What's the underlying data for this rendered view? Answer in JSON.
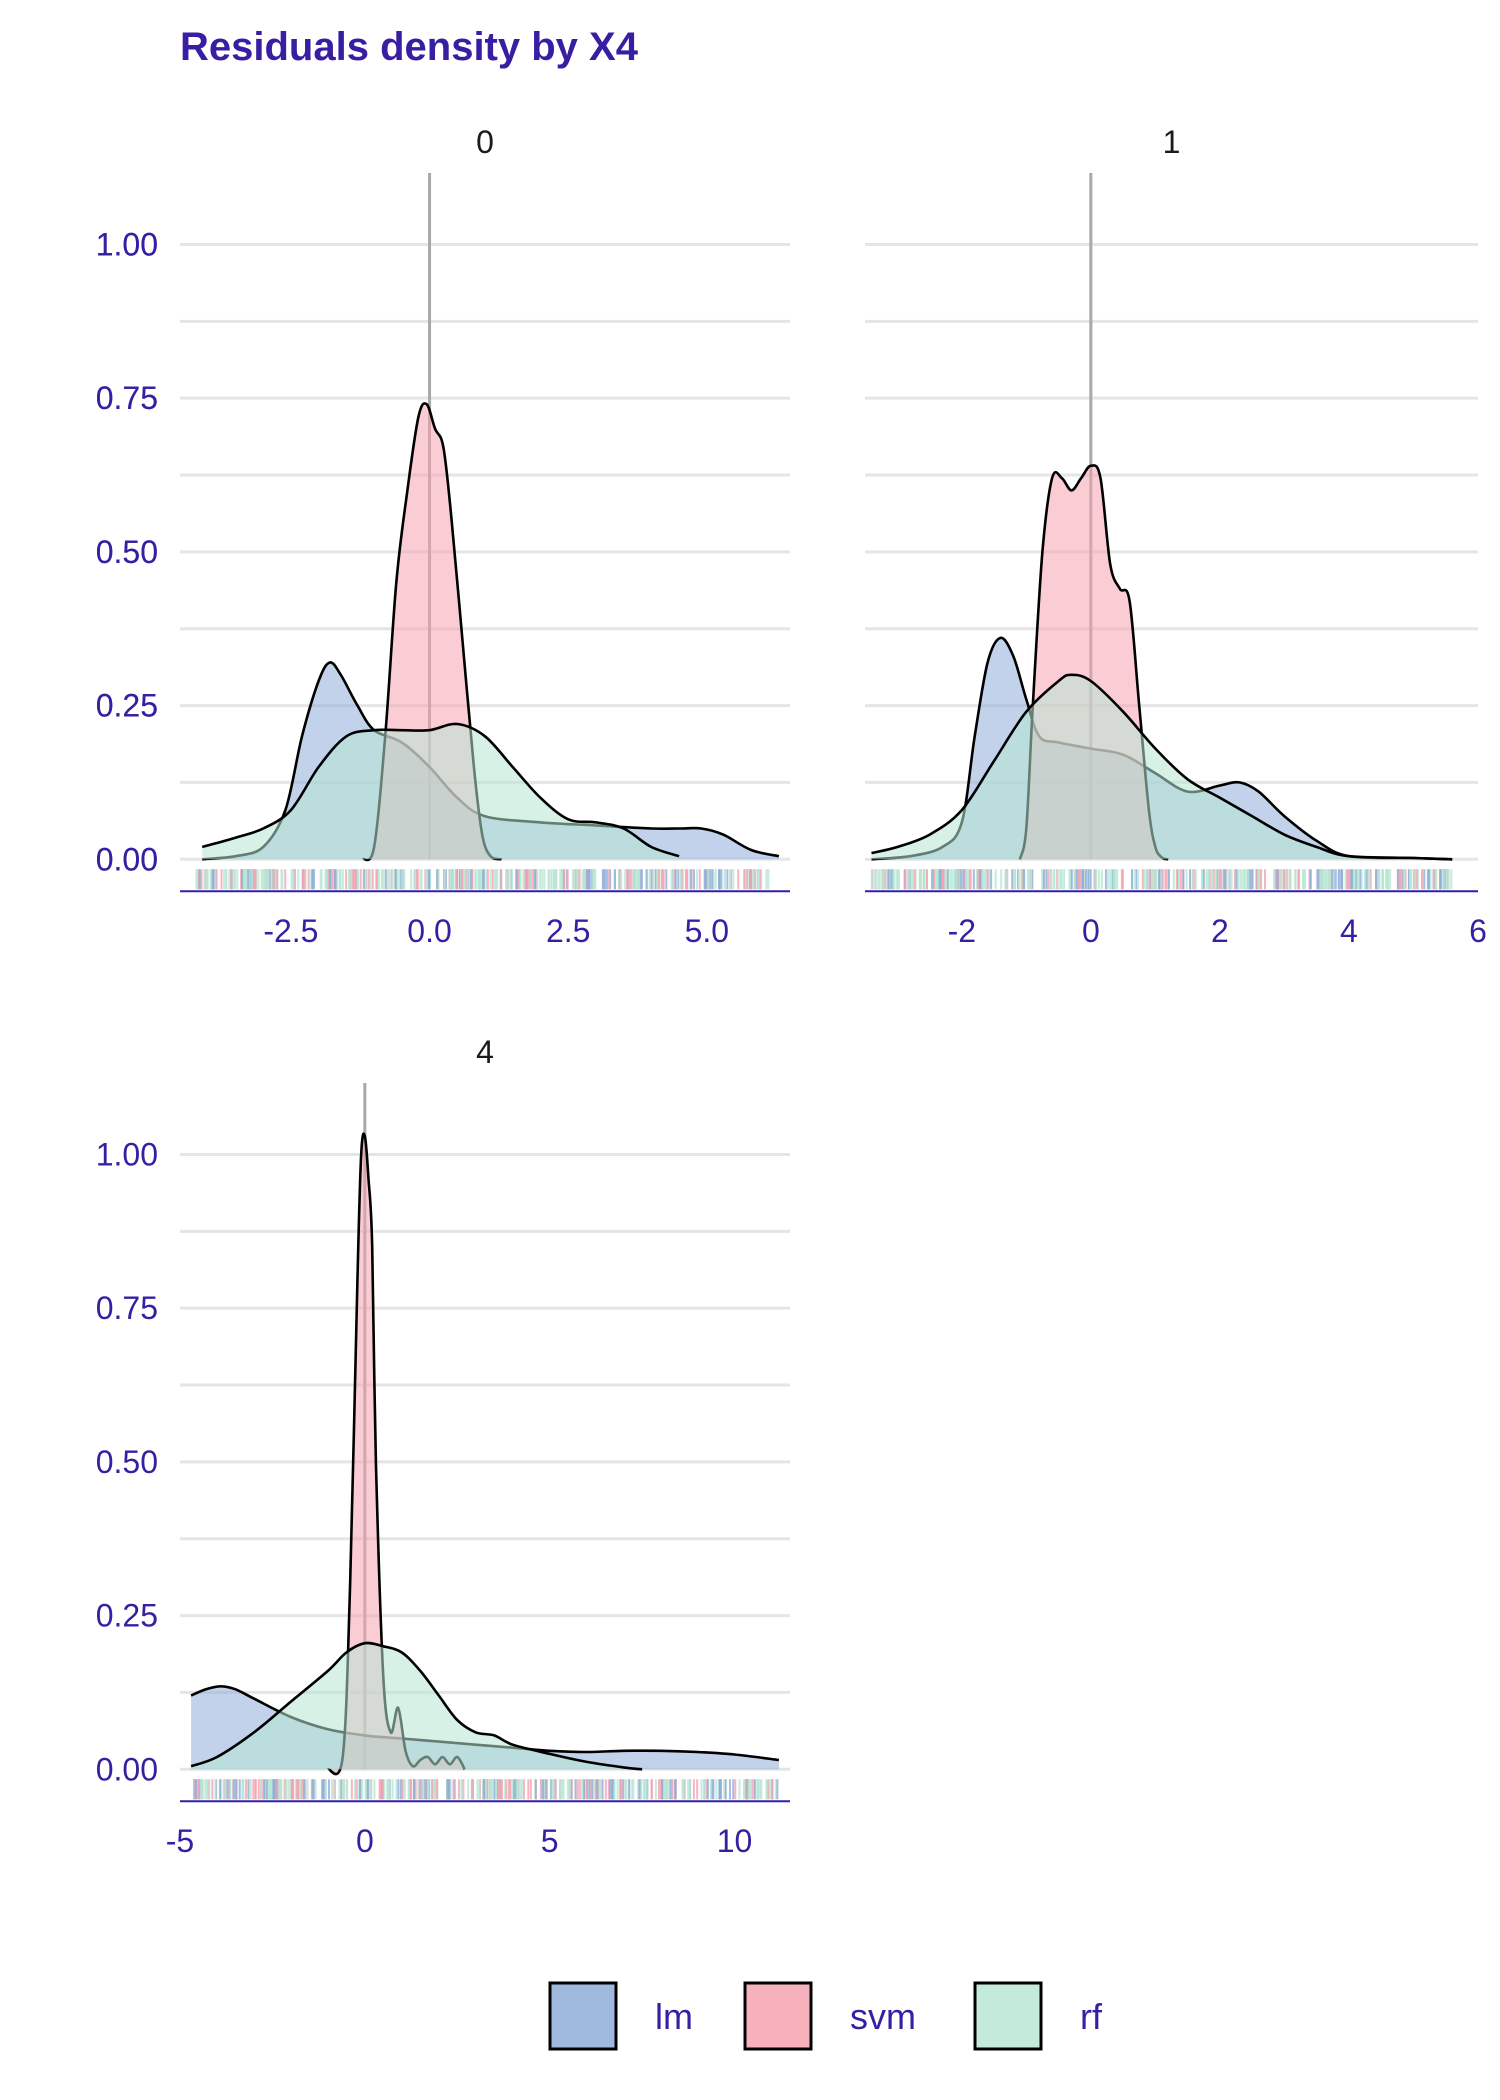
{
  "chart_data": {
    "type": "area",
    "title": "Residuals density by X4",
    "xlabel": "",
    "ylabel": "",
    "legend": {
      "position": "bottom",
      "entries": [
        {
          "key": "lm",
          "label": "lm"
        },
        {
          "key": "svm",
          "label": "svm"
        },
        {
          "key": "rf",
          "label": "rf"
        }
      ]
    },
    "colors": {
      "lm": "#8fadd8",
      "svm": "#f5a3b0",
      "rf": "#b8e6d3",
      "outline": "#000000",
      "grid": "#e5e5e5",
      "vline": "#a8a8a8",
      "axis": "#371ea3"
    },
    "fill_opacity": 0.55,
    "grid": true,
    "y_ticks": [
      0,
      0.25,
      0.5,
      0.75,
      1.0
    ],
    "y_tick_labels": [
      "0.00",
      "0.25",
      "0.50",
      "0.75",
      "1.00"
    ],
    "ylim": [
      -0.05,
      1.1
    ],
    "panels": [
      {
        "strip": "0",
        "xlim": [
          -4.5,
          6.5
        ],
        "x_ticks": [
          -2.5,
          0,
          2.5,
          5
        ],
        "x_tick_labels": [
          "-2.5",
          "0.0",
          "2.5",
          "5.0"
        ],
        "series": [
          {
            "key": "lm",
            "x": [
              -4.1,
              -3.5,
              -3.0,
              -2.6,
              -2.3,
              -2.0,
              -1.8,
              -1.6,
              -1.3,
              -1.0,
              -0.5,
              0.0,
              0.5,
              1.0,
              2.0,
              3.0,
              4.0,
              4.5,
              4.9,
              5.3,
              5.8,
              6.3
            ],
            "y": [
              0.0,
              0.005,
              0.02,
              0.08,
              0.2,
              0.29,
              0.32,
              0.3,
              0.25,
              0.21,
              0.19,
              0.15,
              0.1,
              0.07,
              0.06,
              0.055,
              0.05,
              0.05,
              0.05,
              0.04,
              0.015,
              0.005
            ]
          },
          {
            "key": "svm",
            "x": [
              -1.2,
              -1.0,
              -0.8,
              -0.6,
              -0.4,
              -0.2,
              -0.05,
              0.1,
              0.25,
              0.4,
              0.6,
              0.8,
              0.95,
              1.1,
              1.3
            ],
            "y": [
              0.0,
              0.02,
              0.2,
              0.45,
              0.6,
              0.72,
              0.74,
              0.7,
              0.67,
              0.55,
              0.35,
              0.15,
              0.04,
              0.005,
              0.0
            ]
          },
          {
            "key": "rf",
            "x": [
              -4.1,
              -3.5,
              -3.0,
              -2.5,
              -2.0,
              -1.5,
              -1.0,
              -0.5,
              0.0,
              0.5,
              1.0,
              1.5,
              2.0,
              2.5,
              3.0,
              3.5,
              4.0,
              4.5
            ],
            "y": [
              0.02,
              0.035,
              0.05,
              0.08,
              0.15,
              0.2,
              0.21,
              0.21,
              0.21,
              0.22,
              0.2,
              0.15,
              0.1,
              0.065,
              0.06,
              0.05,
              0.02,
              0.005
            ]
          }
        ],
        "rug": {
          "range": [
            -4.2,
            6.2
          ]
        }
      },
      {
        "strip": "1",
        "xlim": [
          -3.5,
          6.0
        ],
        "x_ticks": [
          -2,
          0,
          2,
          4,
          6
        ],
        "x_tick_labels": [
          "-2",
          "0",
          "2",
          "4",
          "6"
        ],
        "series": [
          {
            "key": "lm",
            "x": [
              -3.4,
              -2.8,
              -2.3,
              -2.0,
              -1.8,
              -1.6,
              -1.4,
              -1.2,
              -1.0,
              -0.8,
              -0.5,
              0.0,
              0.5,
              1.0,
              1.5,
              2.0,
              2.3,
              2.6,
              3.0,
              3.5,
              4.0,
              5.0,
              5.6
            ],
            "y": [
              0.0,
              0.005,
              0.02,
              0.06,
              0.2,
              0.32,
              0.36,
              0.33,
              0.26,
              0.2,
              0.19,
              0.18,
              0.17,
              0.14,
              0.11,
              0.12,
              0.125,
              0.11,
              0.07,
              0.03,
              0.005,
              0.002,
              0.0
            ]
          },
          {
            "key": "svm",
            "x": [
              -1.1,
              -1.0,
              -0.9,
              -0.75,
              -0.6,
              -0.45,
              -0.3,
              -0.15,
              0.0,
              0.15,
              0.3,
              0.45,
              0.6,
              0.75,
              0.9,
              1.0,
              1.1,
              1.2
            ],
            "y": [
              0.0,
              0.05,
              0.25,
              0.5,
              0.62,
              0.62,
              0.6,
              0.62,
              0.64,
              0.62,
              0.48,
              0.44,
              0.42,
              0.25,
              0.08,
              0.02,
              0.003,
              0.0
            ]
          },
          {
            "key": "rf",
            "x": [
              -3.4,
              -3.0,
              -2.5,
              -2.0,
              -1.5,
              -1.0,
              -0.5,
              -0.3,
              0.0,
              0.5,
              1.0,
              1.5,
              2.0,
              2.5,
              3.0,
              3.5,
              4.0,
              5.0,
              5.6
            ],
            "y": [
              0.01,
              0.02,
              0.04,
              0.08,
              0.16,
              0.24,
              0.29,
              0.3,
              0.29,
              0.24,
              0.18,
              0.13,
              0.1,
              0.07,
              0.04,
              0.02,
              0.005,
              0.002,
              0.0
            ]
          }
        ],
        "rug": {
          "range": [
            -3.4,
            5.6
          ]
        }
      },
      {
        "strip": "4",
        "xlim": [
          -5.0,
          11.5
        ],
        "x_ticks": [
          -5,
          0,
          5,
          10
        ],
        "x_tick_labels": [
          "-5",
          "0",
          "5",
          "10"
        ],
        "series": [
          {
            "key": "lm",
            "x": [
              -4.7,
              -4.3,
              -3.9,
              -3.5,
              -3.0,
              -2.0,
              -1.0,
              0.0,
              1.0,
              2.0,
              3.0,
              4.0,
              5.0,
              6.0,
              7.0,
              8.0,
              9.0,
              10.0,
              11.2
            ],
            "y": [
              0.12,
              0.13,
              0.135,
              0.13,
              0.115,
              0.085,
              0.065,
              0.055,
              0.05,
              0.045,
              0.04,
              0.035,
              0.03,
              0.028,
              0.03,
              0.03,
              0.028,
              0.024,
              0.015
            ]
          },
          {
            "key": "svm",
            "x": [
              -1.0,
              -0.6,
              -0.4,
              -0.2,
              -0.1,
              0.0,
              0.1,
              0.2,
              0.3,
              0.5,
              0.7,
              0.9,
              1.1,
              1.3,
              1.5,
              1.7,
              1.9,
              2.1,
              2.3,
              2.5,
              2.7
            ],
            "y": [
              0.0,
              0.02,
              0.3,
              0.8,
              1.0,
              1.03,
              0.96,
              0.85,
              0.5,
              0.15,
              0.06,
              0.1,
              0.03,
              0.005,
              0.015,
              0.02,
              0.008,
              0.02,
              0.008,
              0.02,
              0.0
            ]
          },
          {
            "key": "rf",
            "x": [
              -4.7,
              -4.0,
              -3.0,
              -2.0,
              -1.0,
              -0.5,
              0.0,
              0.5,
              1.0,
              1.5,
              2.0,
              2.5,
              3.0,
              3.5,
              4.0,
              5.0,
              6.0,
              7.0,
              7.5
            ],
            "y": [
              0.005,
              0.02,
              0.06,
              0.11,
              0.16,
              0.19,
              0.205,
              0.2,
              0.19,
              0.16,
              0.12,
              0.08,
              0.06,
              0.055,
              0.04,
              0.025,
              0.012,
              0.003,
              0.0
            ]
          }
        ],
        "rug": {
          "range": [
            -4.7,
            11.2
          ]
        }
      }
    ]
  }
}
